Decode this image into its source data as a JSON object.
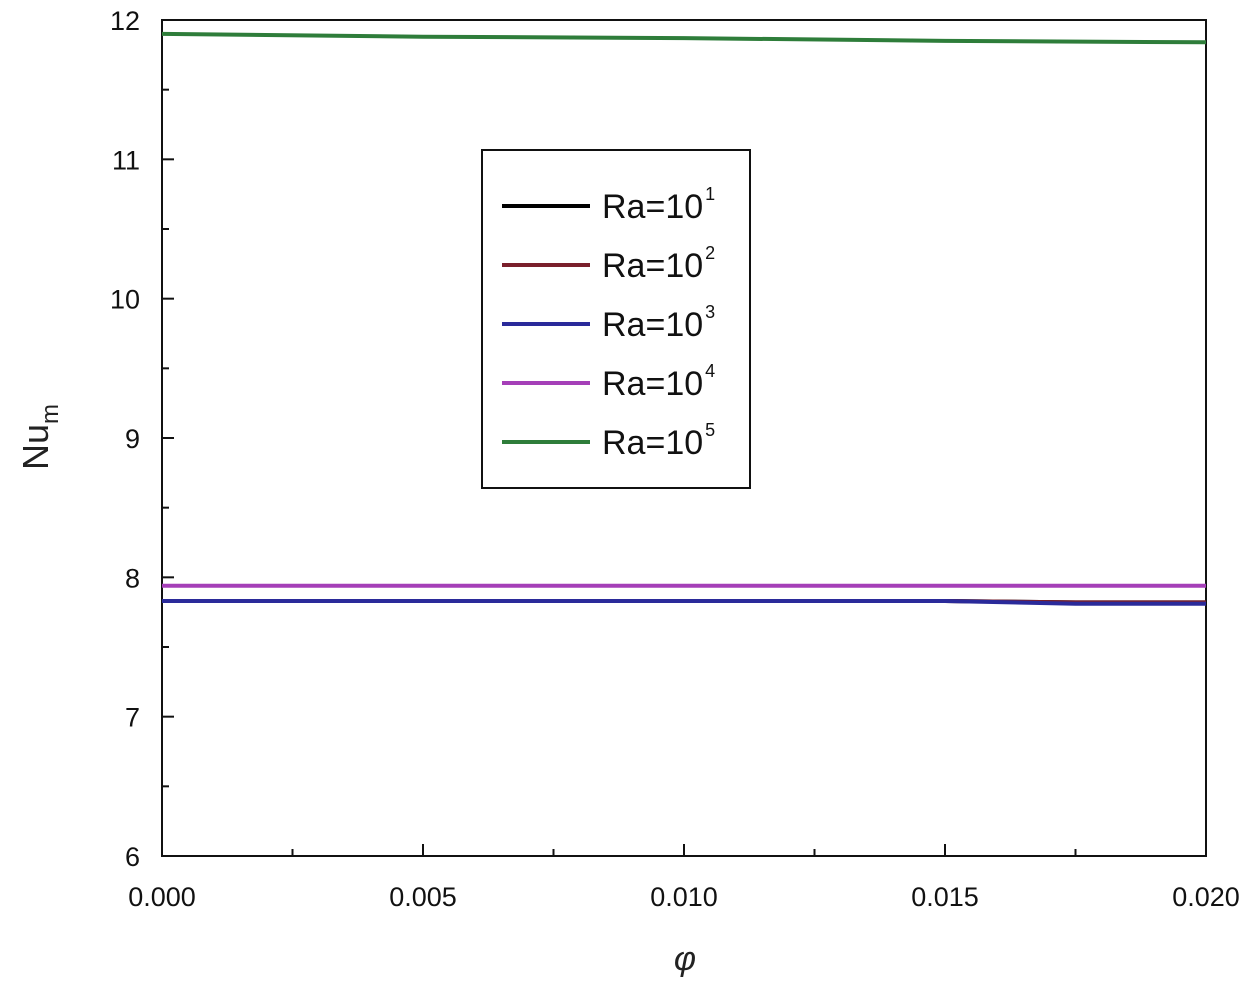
{
  "chart_data": {
    "type": "line",
    "xlabel": "φ",
    "ylabel": "Nu",
    "ylabel_sub": "m",
    "xlim": [
      0.0,
      0.02
    ],
    "ylim": [
      6,
      12
    ],
    "x_ticks": [
      "0.000",
      "0.005",
      "0.010",
      "0.015",
      "0.020"
    ],
    "y_ticks": [
      "6",
      "7",
      "8",
      "9",
      "10",
      "11",
      "12"
    ],
    "grid": false,
    "legend_position": "upper-center",
    "series": [
      {
        "name": "Ra=10",
        "sup": "1",
        "color": "#000000",
        "x": [
          0.0,
          0.005,
          0.01,
          0.015,
          0.0175,
          0.02
        ],
        "y": [
          7.83,
          7.83,
          7.83,
          7.83,
          7.82,
          7.82
        ]
      },
      {
        "name": "Ra=10",
        "sup": "2",
        "color": "#7a1f2b",
        "x": [
          0.0,
          0.005,
          0.01,
          0.015,
          0.0175,
          0.02
        ],
        "y": [
          7.83,
          7.83,
          7.83,
          7.83,
          7.82,
          7.82
        ]
      },
      {
        "name": "Ra=10",
        "sup": "3",
        "color": "#2a2a9a",
        "x": [
          0.0,
          0.005,
          0.01,
          0.015,
          0.0175,
          0.02
        ],
        "y": [
          7.83,
          7.83,
          7.83,
          7.83,
          7.81,
          7.81
        ]
      },
      {
        "name": "Ra=10",
        "sup": "4",
        "color": "#a53fb8",
        "x": [
          0.0,
          0.005,
          0.01,
          0.015,
          0.02
        ],
        "y": [
          7.94,
          7.94,
          7.94,
          7.94,
          7.94
        ]
      },
      {
        "name": "Ra=10",
        "sup": "5",
        "color": "#2e7d3a",
        "x": [
          0.0,
          0.005,
          0.01,
          0.015,
          0.02
        ],
        "y": [
          11.9,
          11.88,
          11.87,
          11.85,
          11.84
        ]
      }
    ]
  }
}
